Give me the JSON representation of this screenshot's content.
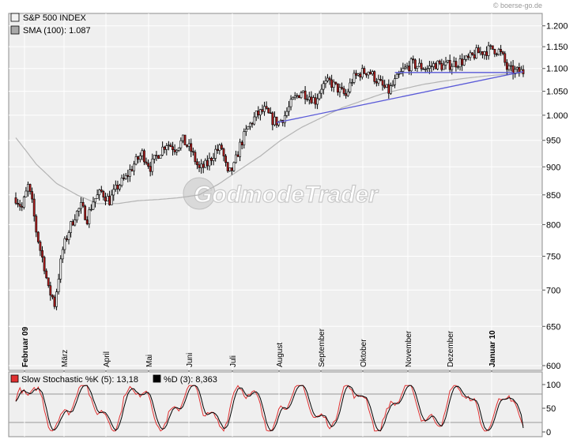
{
  "credit": "© boerse-go.de",
  "watermark": "GodmodeTrader",
  "colors": {
    "plot_bg": "#efefef",
    "grid": "#ffffff",
    "up": "#ffffff",
    "down": "#b01c1c",
    "wick": "#000000",
    "sma": "#b4b4b4",
    "trend": "#5a5ad8",
    "stoch_k": "#e03030",
    "stoch_d": "#000000"
  },
  "chart_data": [
    {
      "type": "candlestick",
      "title": "",
      "legend": [
        {
          "label": "S&P 500 INDEX",
          "swatch": "#f2f2f2"
        },
        {
          "label": "SMA (100): 1.087",
          "swatch": "#a8a8a8"
        }
      ],
      "y_scale": "log",
      "ylim": [
        600,
        1215
      ],
      "y_ticks": [
        600,
        650,
        700,
        750,
        800,
        850,
        900,
        950,
        1000,
        1050,
        1100,
        1150,
        1200
      ],
      "y_tick_labels": [
        "600",
        "650",
        "700",
        "750",
        "800",
        "850",
        "900",
        "950",
        "1.000",
        "1.050",
        "1.100",
        "1.150",
        "1.200"
      ],
      "x_labels": [
        "Februar 09",
        "März",
        "April",
        "Mai",
        "Juni",
        "Juli",
        "August",
        "September",
        "Oktober",
        "November",
        "Dezember",
        "Januar 10"
      ],
      "x_labels_bold": [
        "Februar 09",
        "Januar 10"
      ],
      "close_path": [
        [
          0,
          845
        ],
        [
          3,
          828
        ],
        [
          6,
          865
        ],
        [
          8,
          835
        ],
        [
          10,
          790
        ],
        [
          12,
          760
        ],
        [
          14,
          735
        ],
        [
          16,
          700
        ],
        [
          18,
          690
        ],
        [
          19,
          680
        ],
        [
          21,
          720
        ],
        [
          23,
          760
        ],
        [
          26,
          790
        ],
        [
          29,
          815
        ],
        [
          32,
          830
        ],
        [
          35,
          810
        ],
        [
          38,
          840
        ],
        [
          42,
          855
        ],
        [
          46,
          840
        ],
        [
          50,
          865
        ],
        [
          54,
          880
        ],
        [
          58,
          905
        ],
        [
          62,
          925
        ],
        [
          66,
          900
        ],
        [
          70,
          925
        ],
        [
          74,
          945
        ],
        [
          78,
          935
        ],
        [
          82,
          950
        ],
        [
          86,
          930
        ],
        [
          90,
          895
        ],
        [
          94,
          905
        ],
        [
          98,
          930
        ],
        [
          101,
          935
        ],
        [
          104,
          885
        ],
        [
          107,
          900
        ],
        [
          110,
          940
        ],
        [
          114,
          975
        ],
        [
          118,
          1000
        ],
        [
          122,
          1010
        ],
        [
          126,
          990
        ],
        [
          129,
          985
        ],
        [
          132,
          1000
        ],
        [
          136,
          1030
        ],
        [
          140,
          1050
        ],
        [
          144,
          1040
        ],
        [
          147,
          1030
        ],
        [
          150,
          1060
        ],
        [
          154,
          1070
        ],
        [
          158,
          1055
        ],
        [
          162,
          1040
        ],
        [
          165,
          1075
        ],
        [
          169,
          1090
        ],
        [
          173,
          1095
        ],
        [
          177,
          1075
        ],
        [
          180,
          1060
        ],
        [
          183,
          1050
        ],
        [
          186,
          1070
        ],
        [
          190,
          1095
        ],
        [
          194,
          1110
        ],
        [
          198,
          1105
        ],
        [
          202,
          1100
        ],
        [
          206,
          1110
        ],
        [
          210,
          1105
        ],
        [
          214,
          1110
        ],
        [
          218,
          1115
        ],
        [
          222,
          1120
        ],
        [
          226,
          1135
        ],
        [
          230,
          1140
        ],
        [
          234,
          1145
        ],
        [
          237,
          1140
        ],
        [
          239,
          1125
        ],
        [
          241,
          1100
        ],
        [
          243,
          1095
        ],
        [
          245,
          1093
        ]
      ],
      "sma_path": [
        [
          0,
          955
        ],
        [
          10,
          905
        ],
        [
          20,
          870
        ],
        [
          30,
          850
        ],
        [
          40,
          835
        ],
        [
          50,
          835
        ],
        [
          60,
          840
        ],
        [
          70,
          842
        ],
        [
          80,
          845
        ],
        [
          90,
          850
        ],
        [
          100,
          870
        ],
        [
          110,
          895
        ],
        [
          120,
          920
        ],
        [
          130,
          950
        ],
        [
          140,
          975
        ],
        [
          150,
          995
        ],
        [
          160,
          1015
        ],
        [
          170,
          1030
        ],
        [
          180,
          1045
        ],
        [
          190,
          1055
        ],
        [
          200,
          1065
        ],
        [
          210,
          1072
        ],
        [
          220,
          1078
        ],
        [
          230,
          1083
        ],
        [
          240,
          1087
        ],
        [
          245,
          1089
        ]
      ],
      "trend_lines": [
        {
          "from": [
            128,
            985
          ],
          "to": [
            249,
            1093
          ]
        },
        {
          "from": [
            186,
            1091
          ],
          "to": [
            244,
            1091
          ]
        }
      ]
    },
    {
      "type": "line",
      "title": "",
      "legend": [
        {
          "label": "Slow Stochastic %K (5): 13,18",
          "swatch": "#e03030"
        },
        {
          "label": "%D (3): 8,363",
          "swatch": "#000000"
        }
      ],
      "ylim": [
        0,
        100
      ],
      "y_ticks": [
        0,
        50,
        100
      ],
      "y_tick_labels": [
        "0",
        "50",
        "100"
      ],
      "k_final": 13.18,
      "d_final": 8.363
    }
  ]
}
